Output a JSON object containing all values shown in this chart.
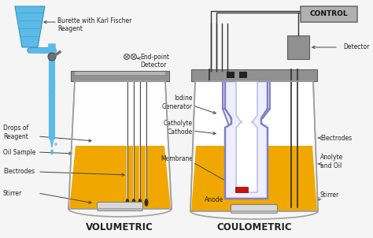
{
  "background_color": "#f5f5f5",
  "title_volumetric": "VOLUMETRIC",
  "title_coulometric": "COULOMETRIC",
  "labels_volumetric": {
    "burette": "Burette with Karl Fischer\nReagent",
    "endpoint": "End-point\nDetector",
    "drops": "Drops of\nReagent",
    "oil_sample": "Oil Sample",
    "electrodes": "Electrodes",
    "stirrer": "Stirrer"
  },
  "labels_coulometric": {
    "control": "CONTROL",
    "detector": "Detector",
    "iodine": "Iodine\nGenerator",
    "catholyte": "Catholyte\nCathode",
    "membrane": "Membrane",
    "anode": "Anode",
    "electrodes": "Electrodes",
    "anolyte": "Anolyte\nand Oil",
    "stirrer": "Stirrer"
  },
  "colors": {
    "burette_blue": "#5bbae8",
    "burette_dark": "#3a90b8",
    "oil_yellow": "#f0a800",
    "oil_yellow2": "#e8a000",
    "vessel_gray": "#a0a0a0",
    "vessel_light": "#d8d8d8",
    "vessel_dark": "#808080",
    "cap_gray": "#909090",
    "cap_dark": "#606060",
    "electrode_dark": "#303030",
    "electrode_white": "#e0e0e0",
    "drop_blue": "#5bbae8",
    "purple_inner": "#8080c8",
    "purple_light": "#c0c0e8",
    "red_membrane": "#cc1010",
    "control_gray": "#909090",
    "control_bg": "#b0b0b0",
    "text_dark": "#222222",
    "arrow_dark": "#444444",
    "stopper_gray": "#707070",
    "tube_blue": "#60b0d8",
    "black_plug": "#222222",
    "detector_gray": "#909090"
  },
  "fig_width": 4.74,
  "fig_height": 3.02,
  "dpi": 100
}
